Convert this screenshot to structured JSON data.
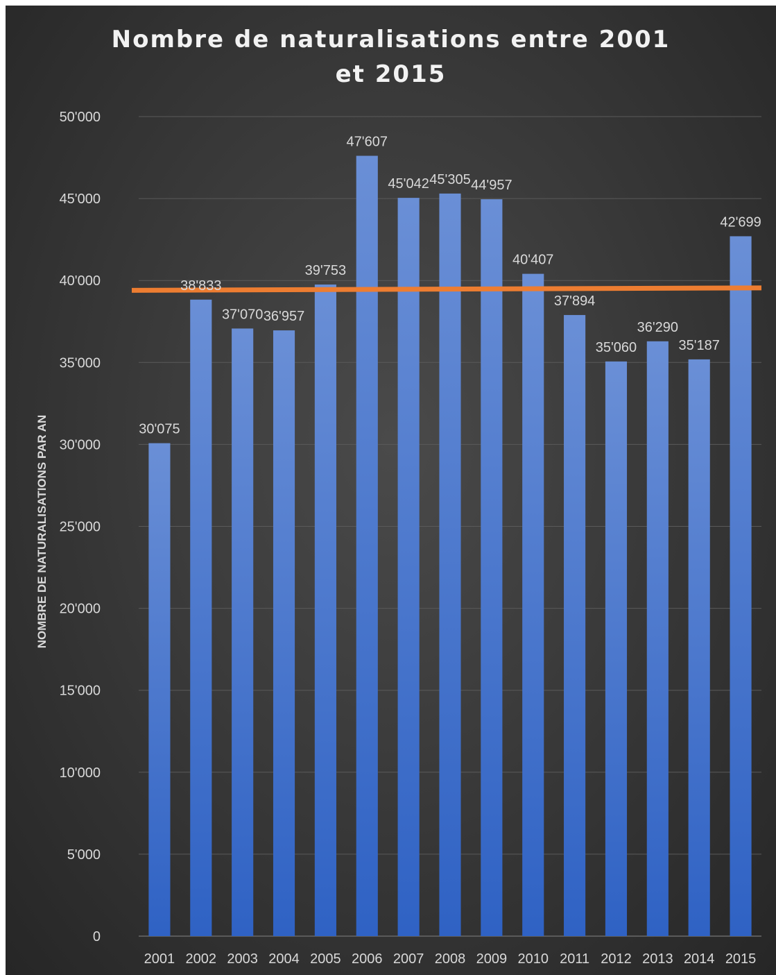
{
  "chart_data": {
    "type": "bar",
    "title": "Nombre de naturalisations entre 2001 et 2015",
    "xlabel": "",
    "ylabel": "NOMBRE DE NATURALISATIONS PAR AN",
    "ylim": [
      0,
      50000
    ],
    "ytick_step": 5000,
    "ytick_labels": [
      "0",
      "5'000",
      "10'000",
      "15'000",
      "20'000",
      "25'000",
      "30'000",
      "35'000",
      "40'000",
      "45'000",
      "50'000"
    ],
    "categories": [
      "2001",
      "2002",
      "2003",
      "2004",
      "2005",
      "2006",
      "2007",
      "2008",
      "2009",
      "2010",
      "2011",
      "2012",
      "2013",
      "2014",
      "2015"
    ],
    "values": [
      30075,
      38833,
      37070,
      36957,
      39753,
      47607,
      45042,
      45305,
      44957,
      40407,
      37894,
      35060,
      36290,
      35187,
      42699
    ],
    "value_labels": [
      "30'075",
      "38'833",
      "37'070",
      "36'957",
      "39'753",
      "47'607",
      "45'042",
      "45'305",
      "44'957",
      "40'407",
      "37'894",
      "35'060",
      "36'290",
      "35'187",
      "42'699"
    ],
    "reference_line": {
      "start": 39400,
      "end": 39550
    },
    "grid": true,
    "colors": {
      "bar_top": "#6a8fd6",
      "bar_bottom": "#2f62c4",
      "line": "#ed7d31",
      "grid": "#5a5a5a",
      "text": "#d9d9d9"
    }
  }
}
